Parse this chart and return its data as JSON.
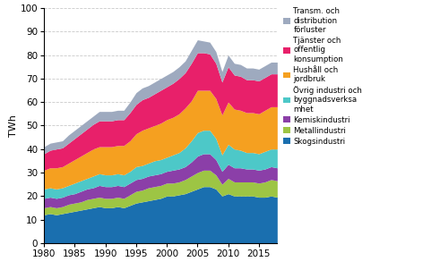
{
  "years": [
    1980,
    1981,
    1982,
    1983,
    1984,
    1985,
    1986,
    1987,
    1988,
    1989,
    1990,
    1991,
    1992,
    1993,
    1994,
    1995,
    1996,
    1997,
    1998,
    1999,
    2000,
    2001,
    2002,
    2003,
    2004,
    2005,
    2006,
    2007,
    2008,
    2009,
    2010,
    2011,
    2012,
    2013,
    2014,
    2015,
    2016,
    2017,
    2018
  ],
  "Skogsindustri": [
    12,
    12.5,
    12,
    12.5,
    13,
    13.5,
    14,
    14.5,
    15,
    15.5,
    15,
    15,
    15.5,
    15,
    16,
    17,
    17.5,
    18,
    18.5,
    19,
    20,
    20,
    20.5,
    21,
    22,
    23,
    24,
    24,
    23,
    20,
    21,
    20,
    20,
    20,
    20,
    19.5,
    19.5,
    20,
    19.5
  ],
  "Metallindustri": [
    3,
    3,
    3,
    3,
    3.5,
    3.5,
    3.5,
    4,
    4,
    4,
    4,
    4,
    4,
    4,
    4.5,
    5,
    5,
    5.5,
    5.5,
    5.5,
    5.5,
    5.5,
    5.5,
    6,
    6.5,
    7,
    7,
    7,
    6,
    5,
    6.5,
    6,
    6,
    6,
    6,
    6,
    6.5,
    7,
    7
  ],
  "Kemiskindustri": [
    4,
    4,
    4,
    4,
    4,
    4,
    4.5,
    4.5,
    4.5,
    5,
    5,
    5,
    5,
    5,
    5,
    5,
    5,
    5,
    5,
    5,
    5,
    5.5,
    5.5,
    5.5,
    6,
    7,
    7,
    7,
    6.5,
    5.5,
    6,
    6,
    6,
    5.5,
    5.5,
    5.5,
    5.5,
    5.5,
    5.5
  ],
  "Ovrig_industri": [
    4,
    4,
    4,
    4,
    4,
    4.5,
    4.5,
    4.5,
    5,
    5,
    5,
    5,
    5,
    5,
    5,
    5.5,
    5.5,
    5.5,
    6,
    6,
    6,
    6.5,
    7,
    8,
    9,
    10,
    10,
    10,
    9,
    7,
    8.5,
    8,
    7.5,
    7,
    7,
    7,
    7.5,
    7.5,
    8
  ],
  "Hushall_jordbruk": [
    8,
    8.5,
    9,
    9,
    9.5,
    10,
    10.5,
    11,
    11.5,
    11.5,
    12,
    12,
    12,
    12.5,
    13,
    14,
    15,
    15,
    15,
    15.5,
    16,
    16,
    16.5,
    17,
    17,
    18,
    17,
    17,
    17,
    17,
    18,
    17,
    17,
    17,
    17,
    17,
    17.5,
    18,
    18
  ],
  "Tjanster_offentlig": [
    7,
    7.5,
    8,
    8,
    8.5,
    9,
    9.5,
    10,
    10.5,
    11,
    11,
    11,
    11,
    11,
    12,
    12.5,
    13,
    13,
    13.5,
    14,
    14,
    14.5,
    15,
    15,
    16,
    16,
    16,
    15.5,
    15,
    14,
    15,
    14.5,
    14.5,
    14,
    14,
    14,
    14,
    14,
    14
  ],
  "Transm_distribution": [
    3,
    3,
    3,
    3,
    3.5,
    3.5,
    3.5,
    3.5,
    3.5,
    4,
    4,
    4,
    4,
    4,
    4.5,
    5,
    5,
    5,
    5,
    5,
    5,
    5,
    5,
    5,
    5.5,
    5.5,
    5,
    5,
    5,
    4.5,
    5,
    5,
    5,
    5,
    5,
    5,
    5,
    5,
    5
  ],
  "colors": {
    "Skogsindustri": "#1a6faf",
    "Metallindustri": "#9dc544",
    "Kemiskindustri": "#8b3fa8",
    "Ovrig_industri": "#4dc8c8",
    "Hushall_jordbruk": "#f5a020",
    "Tjanster_offentlig": "#e8206a",
    "Transm_distribution": "#9eaabf"
  },
  "legend_labels": {
    "Transm_distribution": "Transm. och\ndistribution\nförluster",
    "Tjanster_offentlig": "Tjänster och\noffentlig\nkonsumption",
    "Hushall_jordbruk": "Hushåll och\njordbruk",
    "Ovrig_industri": "Övrig industri och\nbyggnadsverksa\nmhet",
    "Kemiskindustri": "Kemiskindustri",
    "Metallindustri": "Metallindustri",
    "Skogsindustri": "Skogsindustri"
  },
  "ylabel": "TWh",
  "ylim": [
    0,
    100
  ],
  "yticks": [
    0,
    10,
    20,
    30,
    40,
    50,
    60,
    70,
    80,
    90,
    100
  ],
  "xlim": [
    1980,
    2018
  ],
  "xticks": [
    1980,
    1985,
    1990,
    1995,
    2000,
    2005,
    2010,
    2015
  ]
}
